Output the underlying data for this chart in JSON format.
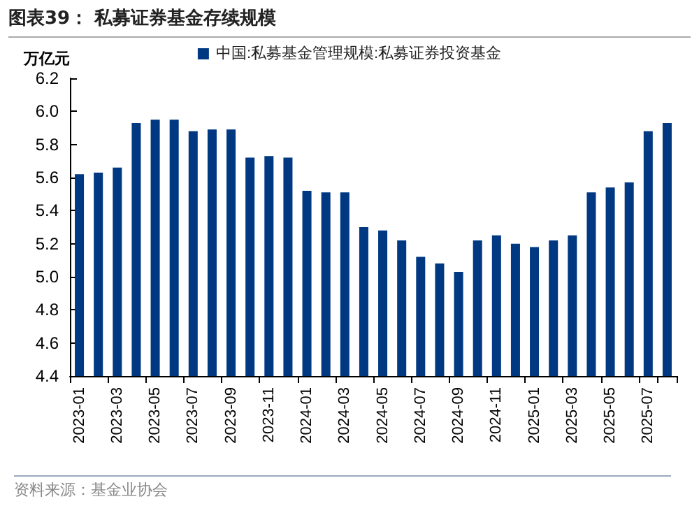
{
  "chart_data": {
    "type": "bar",
    "title": "图表39：  私募证券基金存续规模",
    "ylabel": "万亿元",
    "annotations": [
      "资料来源：基金业协会"
    ],
    "categories": [
      "2023-01",
      null,
      "2023-03",
      null,
      "2023-05",
      null,
      "2023-07",
      null,
      "2023-09",
      null,
      "2023-11",
      null,
      "2024-01",
      null,
      "2024-03",
      null,
      "2024-05",
      null,
      "2024-07",
      null,
      "2024-09",
      null,
      "2024-11",
      null,
      "2025-01",
      null,
      "2025-03",
      null,
      "2025-05",
      null,
      "2025-07",
      null
    ],
    "series": [
      {
        "name": "中国:私募基金管理规模:私募证券投资基金",
        "color": "#003882",
        "values": [
          5.62,
          5.63,
          5.66,
          5.93,
          5.95,
          5.95,
          5.88,
          5.89,
          5.89,
          5.72,
          5.73,
          5.72,
          5.52,
          5.51,
          5.51,
          5.3,
          5.28,
          5.22,
          5.12,
          5.08,
          5.03,
          5.22,
          5.25,
          5.2,
          5.18,
          5.22,
          5.25,
          5.51,
          5.54,
          5.57,
          5.88,
          5.93
        ]
      }
    ],
    "ylim": [
      4.4,
      6.2
    ],
    "yticks": [
      4.4,
      4.6,
      4.8,
      {
        "value": 5,
        "label": "5.0"
      },
      5.2,
      5.4,
      5.6,
      5.8,
      {
        "value": 6,
        "label": "6.0"
      },
      6.2
    ],
    "grid": false,
    "legend": "top"
  }
}
